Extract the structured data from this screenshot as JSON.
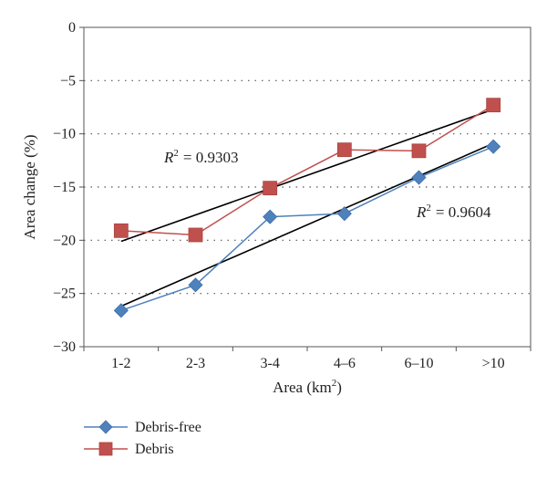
{
  "chart_data": {
    "type": "line",
    "categories": [
      "1-2",
      "2-3",
      "3-4",
      "4–6",
      "6–10",
      ">10"
    ],
    "series": [
      {
        "name": "Debris-free",
        "values": [
          -26.6,
          -24.2,
          -17.8,
          -17.5,
          -14.1,
          -11.2
        ],
        "color": "#4f81bd",
        "marker": "diamond"
      },
      {
        "name": "Debris",
        "values": [
          -19.1,
          -19.5,
          -15.1,
          -11.5,
          -11.6,
          -7.3
        ],
        "color": "#c0504d",
        "marker": "square"
      }
    ],
    "trendlines": [
      {
        "series": "Debris",
        "start": -20.1,
        "end": -7.7,
        "color": "#000000",
        "r2_label": "= 0.9303"
      },
      {
        "series": "Debris-free",
        "start": -26.2,
        "end": -10.9,
        "color": "#000000",
        "r2_label": "= 0.9604"
      }
    ],
    "r2_symbol": "R",
    "r2_exponent": "2",
    "ylim": [
      -30,
      0
    ],
    "yticks": [
      0,
      -5,
      -10,
      -15,
      -20,
      -25,
      -30
    ],
    "yticklabels": [
      "0",
      "−5",
      "−10",
      "−15",
      "−20",
      "−25",
      "−30"
    ],
    "ylabel": "Area change (%)",
    "xlabel_main": "Area (km",
    "xlabel_exponent": "2",
    "xlabel_close": ")",
    "grid": "horizontal dotted",
    "legend_position": "bottom-left"
  }
}
